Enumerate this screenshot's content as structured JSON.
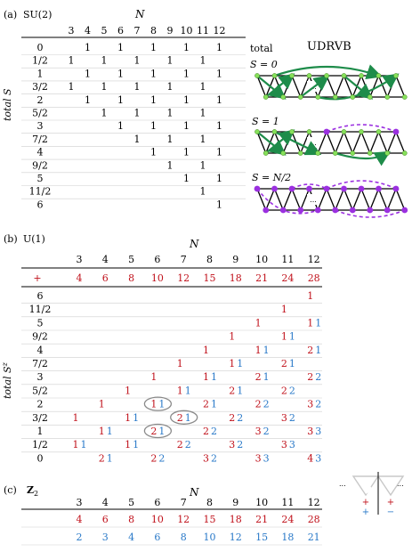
{
  "panel_a": {
    "letter": "(a)",
    "group": "SU(2)",
    "n_label": "N",
    "row_label": "total S",
    "n_values": [
      "3",
      "4",
      "5",
      "6",
      "7",
      "8",
      "9",
      "10",
      "11",
      "12"
    ],
    "rows": [
      {
        "s": "0",
        "ones": [
          4,
          6,
          8,
          10,
          12
        ]
      },
      {
        "s": "1/2",
        "ones": [
          3,
          5,
          7,
          9,
          11
        ]
      },
      {
        "s": "1",
        "ones": [
          4,
          6,
          8,
          10,
          12
        ]
      },
      {
        "s": "3/2",
        "ones": [
          3,
          5,
          7,
          9,
          11
        ]
      },
      {
        "s": "2",
        "ones": [
          4,
          6,
          8,
          10,
          12
        ]
      },
      {
        "s": "5/2",
        "ones": [
          5,
          7,
          9,
          11
        ]
      },
      {
        "s": "3",
        "ones": [
          6,
          8,
          10,
          12
        ]
      },
      {
        "s": "7/2",
        "ones": [
          7,
          9,
          11
        ]
      },
      {
        "s": "4",
        "ones": [
          8,
          10,
          12
        ]
      },
      {
        "s": "9/2",
        "ones": [
          9,
          11
        ]
      },
      {
        "s": "5",
        "ones": [
          10,
          12
        ]
      },
      {
        "s": "11/2",
        "ones": [
          11
        ]
      },
      {
        "s": "6",
        "ones": [
          12
        ]
      }
    ],
    "one_text": "1"
  },
  "udrvb": {
    "title": "UDRVB",
    "total_label": "total",
    "s0_label": "S = 0",
    "s1_label": "S = 1",
    "sn_label": "S = N/2",
    "ellipsis": "..."
  },
  "panel_b": {
    "letter": "(b)",
    "group": "U(1)",
    "n_label": "N",
    "row_label": "total S^z",
    "n_values": [
      "3",
      "4",
      "5",
      "6",
      "7",
      "8",
      "9",
      "10",
      "11",
      "12"
    ],
    "plus_sign": "+",
    "plus_row": [
      "4",
      "6",
      "8",
      "10",
      "12",
      "15",
      "18",
      "21",
      "24",
      "28"
    ],
    "rows": [
      {
        "s": "6",
        "cells": {
          "12": [
            "1",
            ""
          ]
        }
      },
      {
        "s": "11/2",
        "cells": {
          "11": [
            "1",
            ""
          ]
        }
      },
      {
        "s": "5",
        "cells": {
          "10": [
            "1",
            ""
          ],
          "12": [
            "1",
            "1"
          ]
        }
      },
      {
        "s": "9/2",
        "cells": {
          "9": [
            "1",
            ""
          ],
          "11": [
            "1",
            "1"
          ]
        }
      },
      {
        "s": "4",
        "cells": {
          "8": [
            "1",
            ""
          ],
          "10": [
            "1",
            "1"
          ],
          "12": [
            "2",
            "1"
          ]
        }
      },
      {
        "s": "7/2",
        "cells": {
          "7": [
            "1",
            ""
          ],
          "9": [
            "1",
            "1"
          ],
          "11": [
            "2",
            "1"
          ]
        }
      },
      {
        "s": "3",
        "cells": {
          "6": [
            "1",
            ""
          ],
          "8": [
            "1",
            "1"
          ],
          "10": [
            "2",
            "1"
          ],
          "12": [
            "2",
            "2"
          ]
        }
      },
      {
        "s": "5/2",
        "cells": {
          "5": [
            "1",
            ""
          ],
          "7": [
            "1",
            "1"
          ],
          "9": [
            "2",
            "1"
          ],
          "11": [
            "2",
            "2"
          ]
        }
      },
      {
        "s": "2",
        "cells": {
          "4": [
            "1",
            ""
          ],
          "6": [
            "1",
            "1"
          ],
          "8": [
            "2",
            "1"
          ],
          "10": [
            "2",
            "2"
          ],
          "12": [
            "3",
            "2"
          ]
        }
      },
      {
        "s": "3/2",
        "cells": {
          "3": [
            "1",
            ""
          ],
          "5": [
            "1",
            "1"
          ],
          "7": [
            "2",
            "1"
          ],
          "9": [
            "2",
            "2"
          ],
          "11": [
            "3",
            "2"
          ]
        }
      },
      {
        "s": "1",
        "cells": {
          "4": [
            "1",
            "1"
          ],
          "6": [
            "2",
            "1"
          ],
          "8": [
            "2",
            "2"
          ],
          "10": [
            "3",
            "2"
          ],
          "12": [
            "3",
            "3"
          ]
        }
      },
      {
        "s": "1/2",
        "cells": {
          "3": [
            "1",
            "1"
          ],
          "5": [
            "1",
            "1"
          ],
          "7": [
            "2",
            "2"
          ],
          "9": [
            "3",
            "2"
          ],
          "11": [
            "3",
            "3"
          ]
        }
      },
      {
        "s": "0",
        "cells": {
          "4": [
            "2",
            "1"
          ],
          "6": [
            "2",
            "2"
          ],
          "8": [
            "3",
            "2"
          ],
          "10": [
            "3",
            "3"
          ],
          "12": [
            "4",
            "3"
          ]
        }
      }
    ],
    "circled": [
      {
        "s": "2",
        "n": "6"
      },
      {
        "s": "3/2",
        "n": "7"
      },
      {
        "s": "1",
        "n": "6"
      }
    ]
  },
  "panel_c": {
    "letter": "(c)",
    "group": "Z2",
    "n_label": "N",
    "n_values": [
      "3",
      "4",
      "5",
      "6",
      "7",
      "8",
      "9",
      "10",
      "11",
      "12"
    ],
    "red_row": [
      "4",
      "6",
      "8",
      "10",
      "12",
      "15",
      "18",
      "21",
      "24",
      "28"
    ],
    "blue_row": [
      "2",
      "3",
      "4",
      "6",
      "8",
      "10",
      "12",
      "15",
      "18",
      "21"
    ],
    "legend": {
      "dots": "...",
      "plus": "+",
      "minus": "−"
    }
  },
  "colors": {
    "red": "#c0101a",
    "blue": "#2878c8",
    "green": "#1e8c4a",
    "purple": "#9b30e0",
    "node_green": "#86e05a",
    "rule": "#000000",
    "light_rule": "#cfcfcf",
    "circle": "#8a8a8a"
  }
}
